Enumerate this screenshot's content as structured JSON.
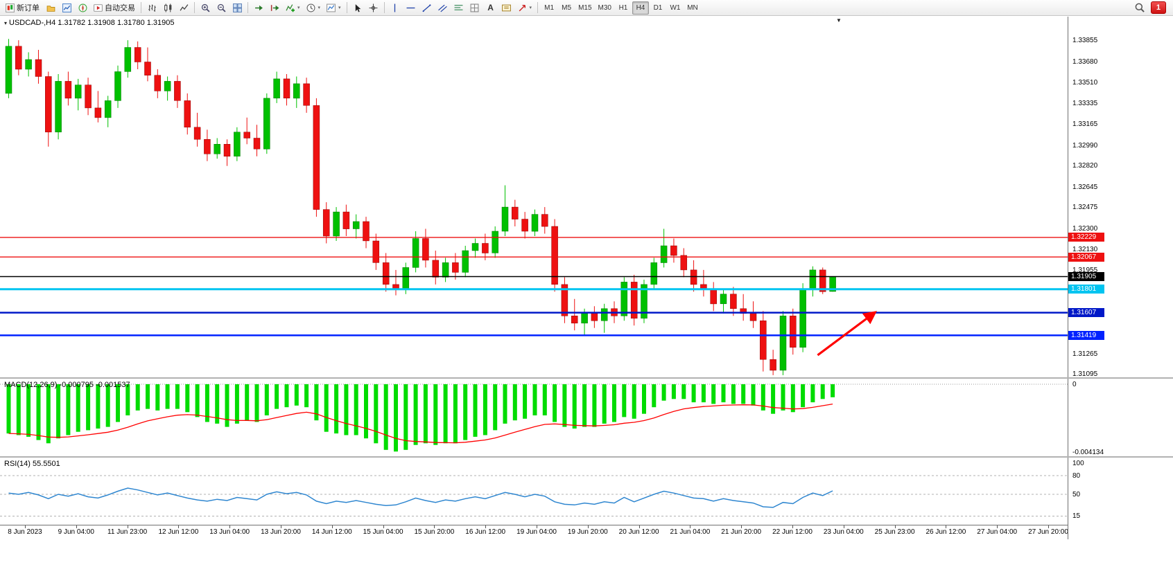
{
  "window": {
    "title": "USDCAD-,H4 1.31782 1.31908 1.31780 1.31905"
  },
  "toolbar": {
    "groups": [
      {
        "items": [
          {
            "name": "new-order-button",
            "icon": "neworder",
            "label": "新订单"
          },
          {
            "name": "profiles-button",
            "icon": "profile"
          },
          {
            "name": "market-watch-button",
            "icon": "marketwatch"
          },
          {
            "name": "navigator-button",
            "icon": "navigator"
          },
          {
            "name": "auto-trading-button",
            "icon": "autotrade",
            "label": "自动交易"
          }
        ]
      },
      {
        "items": [
          {
            "name": "bar-chart-button",
            "icon": "bars"
          },
          {
            "name": "candlestick-chart-button",
            "icon": "candles"
          },
          {
            "name": "line-chart-button",
            "icon": "linechart"
          }
        ]
      },
      {
        "items": [
          {
            "name": "zoom-in-button",
            "icon": "zoomin"
          },
          {
            "name": "zoom-out-button",
            "icon": "zoomout"
          },
          {
            "name": "tile-windows-button",
            "icon": "tile"
          }
        ]
      },
      {
        "items": [
          {
            "name": "auto-scroll-button",
            "icon": "autoscroll"
          },
          {
            "name": "chart-shift-button",
            "icon": "shift"
          },
          {
            "name": "indicators-button",
            "icon": "indicators",
            "dropdown": true
          },
          {
            "name": "periods-button",
            "icon": "clock",
            "dropdown": true
          },
          {
            "name": "templates-button",
            "icon": "template",
            "dropdown": true
          }
        ]
      },
      {
        "items": [
          {
            "name": "cursor-button",
            "icon": "cursor"
          },
          {
            "name": "crosshair-button",
            "icon": "crosshair"
          }
        ]
      },
      {
        "items": [
          {
            "name": "vertical-line-button",
            "icon": "vline"
          },
          {
            "name": "horizontal-line-button",
            "icon": "hline"
          },
          {
            "name": "trendline-button",
            "icon": "trend"
          },
          {
            "name": "equidistant-channel-button",
            "icon": "channel"
          },
          {
            "name": "fibonacci-button",
            "icon": "fibo"
          },
          {
            "name": "shapes-button",
            "icon": "grid"
          },
          {
            "name": "text-button",
            "glyph": "A"
          },
          {
            "name": "text-label-button",
            "icon": "textlabel"
          },
          {
            "name": "arrows-button",
            "icon": "arrowobj",
            "dropdown": true
          }
        ]
      }
    ],
    "timeframes": [
      "M1",
      "M5",
      "M15",
      "M30",
      "H1",
      "H4",
      "D1",
      "W1",
      "MN"
    ],
    "active_timeframe": "H4",
    "notification_badge": "1"
  },
  "time_axis": {
    "labels": [
      "8 Jun 2023",
      "9 Jun 04:00",
      "11 Jun 23:00",
      "12 Jun 12:00",
      "13 Jun 04:00",
      "13 Jun 20:00",
      "14 Jun 12:00",
      "15 Jun 04:00",
      "15 Jun 20:00",
      "16 Jun 12:00",
      "19 Jun 04:00",
      "19 Jun 20:00",
      "20 Jun 12:00",
      "21 Jun 04:00",
      "21 Jun 20:00",
      "22 Jun 12:00",
      "23 Jun 04:00",
      "25 Jun 23:00",
      "26 Jun 12:00",
      "27 Jun 04:00",
      "27 Jun 20:00"
    ]
  },
  "chart_data": [
    {
      "type": "candlestick",
      "symbol": "USDCAD-",
      "timeframe": "H4",
      "current_bar": {
        "open": 1.31782,
        "high": 1.31908,
        "low": 1.3178,
        "close": 1.31905
      },
      "ylim": [
        1.31072,
        1.34055
      ],
      "colors": {
        "up": "#00C000",
        "down": "#EE1111"
      },
      "axis_labels": [
        "1.33855",
        "1.33680",
        "1.33510",
        "1.33335",
        "1.33165",
        "1.32990",
        "1.32820",
        "1.32645",
        "1.32475",
        "1.32300",
        "1.32130",
        "1.31955",
        "1.31265",
        "1.31095"
      ],
      "hlines": [
        {
          "price": 1.32229,
          "label": "1.32229",
          "color": "#EE1111",
          "width": 1.4
        },
        {
          "price": 1.32067,
          "label": "1.32067",
          "color": "#EE1111",
          "width": 1.4
        },
        {
          "price": 1.31801,
          "label": "1.31801",
          "color": "#00C4F0",
          "width": 3
        },
        {
          "price": 1.31607,
          "label": "1.31607",
          "color": "#0018C8",
          "width": 2.5
        },
        {
          "price": 1.31419,
          "label": "1.31419",
          "color": "#0022FF",
          "width": 2.5
        }
      ],
      "current_price": {
        "price": 1.31905,
        "label": "1.31905",
        "color": "#000000"
      },
      "annotation": {
        "type": "arrow",
        "color": "#FF0000",
        "width": 3.2,
        "from": {
          "bar": 81.8,
          "price": 1.31255
        },
        "to": {
          "bar": 87.6,
          "price": 1.3161
        }
      },
      "ohlc": [
        [
          1.3342,
          1.3387,
          1.3338,
          1.3381
        ],
        [
          1.3381,
          1.3386,
          1.3357,
          1.3362
        ],
        [
          1.3362,
          1.3376,
          1.3356,
          1.337
        ],
        [
          1.337,
          1.3378,
          1.335,
          1.3356
        ],
        [
          1.3356,
          1.336,
          1.3298,
          1.331
        ],
        [
          1.331,
          1.3358,
          1.3304,
          1.3352
        ],
        [
          1.3352,
          1.336,
          1.3332,
          1.3338
        ],
        [
          1.3338,
          1.3354,
          1.3328,
          1.3349
        ],
        [
          1.3349,
          1.3355,
          1.3324,
          1.333
        ],
        [
          1.333,
          1.3344,
          1.3318,
          1.3322
        ],
        [
          1.3322,
          1.334,
          1.3314,
          1.3336
        ],
        [
          1.3336,
          1.3365,
          1.333,
          1.336
        ],
        [
          1.336,
          1.3386,
          1.3355,
          1.338
        ],
        [
          1.338,
          1.3385,
          1.3362,
          1.3368
        ],
        [
          1.3368,
          1.338,
          1.3352,
          1.3357
        ],
        [
          1.3357,
          1.3362,
          1.3338,
          1.3344
        ],
        [
          1.3344,
          1.3356,
          1.3336,
          1.3352
        ],
        [
          1.3352,
          1.3357,
          1.333,
          1.3336
        ],
        [
          1.3336,
          1.3342,
          1.3308,
          1.3314
        ],
        [
          1.3314,
          1.3326,
          1.3298,
          1.3304
        ],
        [
          1.3304,
          1.3312,
          1.3286,
          1.3292
        ],
        [
          1.3292,
          1.3305,
          1.3288,
          1.33
        ],
        [
          1.33,
          1.3304,
          1.3282,
          1.329
        ],
        [
          1.329,
          1.3314,
          1.3286,
          1.331
        ],
        [
          1.331,
          1.3322,
          1.33,
          1.3305
        ],
        [
          1.3305,
          1.3316,
          1.329,
          1.3296
        ],
        [
          1.3296,
          1.3342,
          1.3292,
          1.3338
        ],
        [
          1.3338,
          1.336,
          1.3334,
          1.3354
        ],
        [
          1.3354,
          1.3358,
          1.3332,
          1.3338
        ],
        [
          1.3338,
          1.3356,
          1.333,
          1.335
        ],
        [
          1.335,
          1.3355,
          1.3326,
          1.3332
        ],
        [
          1.3332,
          1.3338,
          1.324,
          1.3246
        ],
        [
          1.3246,
          1.3252,
          1.3218,
          1.3224
        ],
        [
          1.3224,
          1.3248,
          1.322,
          1.3244
        ],
        [
          1.3244,
          1.325,
          1.3224,
          1.323
        ],
        [
          1.323,
          1.3242,
          1.3222,
          1.3236
        ],
        [
          1.3236,
          1.324,
          1.3214,
          1.322
        ],
        [
          1.322,
          1.3226,
          1.3196,
          1.3202
        ],
        [
          1.3202,
          1.321,
          1.3178,
          1.3184
        ],
        [
          1.3184,
          1.3196,
          1.3175,
          1.318
        ],
        [
          1.318,
          1.3202,
          1.3176,
          1.3198
        ],
        [
          1.3198,
          1.3228,
          1.3194,
          1.3222
        ],
        [
          1.3222,
          1.323,
          1.3198,
          1.3204
        ],
        [
          1.3204,
          1.3212,
          1.3184,
          1.319
        ],
        [
          1.319,
          1.3206,
          1.3186,
          1.3202
        ],
        [
          1.3202,
          1.321,
          1.3188,
          1.3194
        ],
        [
          1.3194,
          1.3216,
          1.319,
          1.3212
        ],
        [
          1.3212,
          1.3222,
          1.3206,
          1.3218
        ],
        [
          1.3218,
          1.3226,
          1.3204,
          1.321
        ],
        [
          1.321,
          1.3232,
          1.3206,
          1.3228
        ],
        [
          1.3228,
          1.3266,
          1.3224,
          1.3248
        ],
        [
          1.3248,
          1.3254,
          1.3232,
          1.3238
        ],
        [
          1.3238,
          1.3244,
          1.3222,
          1.3228
        ],
        [
          1.3228,
          1.3246,
          1.3224,
          1.3242
        ],
        [
          1.3242,
          1.3248,
          1.3226,
          1.3232
        ],
        [
          1.3232,
          1.3238,
          1.3178,
          1.3184
        ],
        [
          1.3184,
          1.319,
          1.3152,
          1.3158
        ],
        [
          1.3158,
          1.3172,
          1.3146,
          1.3152
        ],
        [
          1.3152,
          1.3164,
          1.3142,
          1.316
        ],
        [
          1.316,
          1.3166,
          1.3148,
          1.3154
        ],
        [
          1.3154,
          1.3168,
          1.3144,
          1.3164
        ],
        [
          1.3164,
          1.317,
          1.3152,
          1.3158
        ],
        [
          1.3158,
          1.319,
          1.3154,
          1.3186
        ],
        [
          1.3186,
          1.3192,
          1.315,
          1.3156
        ],
        [
          1.3156,
          1.3188,
          1.3152,
          1.3184
        ],
        [
          1.3184,
          1.3206,
          1.318,
          1.3202
        ],
        [
          1.3202,
          1.323,
          1.3198,
          1.3216
        ],
        [
          1.3216,
          1.3222,
          1.3202,
          1.3208
        ],
        [
          1.3208,
          1.3214,
          1.319,
          1.3196
        ],
        [
          1.3196,
          1.3204,
          1.3178,
          1.3184
        ],
        [
          1.3184,
          1.3196,
          1.3174,
          1.318
        ],
        [
          1.318,
          1.3186,
          1.3162,
          1.3168
        ],
        [
          1.3168,
          1.318,
          1.316,
          1.3176
        ],
        [
          1.3176,
          1.3182,
          1.3158,
          1.3164
        ],
        [
          1.3164,
          1.3176,
          1.3154,
          1.316
        ],
        [
          1.316,
          1.317,
          1.3148,
          1.3154
        ],
        [
          1.3154,
          1.3162,
          1.3112,
          1.3122
        ],
        [
          1.3122,
          1.313,
          1.3109,
          1.3113
        ],
        [
          1.3113,
          1.3162,
          1.3109,
          1.3158
        ],
        [
          1.3158,
          1.3164,
          1.3126,
          1.3132
        ],
        [
          1.3132,
          1.3185,
          1.3128,
          1.318
        ],
        [
          1.318,
          1.3199,
          1.3174,
          1.3196
        ],
        [
          1.3196,
          1.3198,
          1.3176,
          1.3178
        ],
        [
          1.31782,
          1.31908,
          1.3178,
          1.31905
        ]
      ]
    },
    {
      "type": "bar",
      "name": "MACD(12,26,9)",
      "label": "MACD(12,26,9) -0.000795 -0.001537",
      "value_main": -0.000795,
      "value_signal": -0.001537,
      "ylim": [
        -0.004134,
        0
      ],
      "axis_labels": [
        "0",
        "-0.004134"
      ],
      "colors": {
        "bar": "#00DC00",
        "signal": "#FF0000"
      },
      "values": [
        -0.003,
        -0.0031,
        -0.0032,
        -0.0034,
        -0.0036,
        -0.0033,
        -0.0031,
        -0.0029,
        -0.0028,
        -0.0027,
        -0.0026,
        -0.0023,
        -0.0019,
        -0.0016,
        -0.0015,
        -0.0016,
        -0.0015,
        -0.0015,
        -0.0017,
        -0.002,
        -0.0023,
        -0.0024,
        -0.0026,
        -0.0024,
        -0.0022,
        -0.0023,
        -0.0019,
        -0.0015,
        -0.0014,
        -0.0013,
        -0.0014,
        -0.0022,
        -0.0029,
        -0.003,
        -0.0031,
        -0.0031,
        -0.0033,
        -0.0036,
        -0.004,
        -0.0041,
        -0.004,
        -0.0037,
        -0.0036,
        -0.0037,
        -0.0036,
        -0.0036,
        -0.0034,
        -0.0032,
        -0.0031,
        -0.0028,
        -0.0024,
        -0.0022,
        -0.0021,
        -0.0019,
        -0.0019,
        -0.0023,
        -0.0026,
        -0.0027,
        -0.0026,
        -0.0026,
        -0.0024,
        -0.0023,
        -0.002,
        -0.0021,
        -0.0018,
        -0.0014,
        -0.001,
        -0.0009,
        -0.0009,
        -0.0011,
        -0.0011,
        -0.0012,
        -0.0011,
        -0.0012,
        -0.0012,
        -0.0013,
        -0.0016,
        -0.0018,
        -0.0016,
        -0.0017,
        -0.0014,
        -0.0011,
        -0.0009,
        -0.000795
      ]
    },
    {
      "type": "line",
      "name": "RSI(14)",
      "label": "RSI(14) 55.5501",
      "value": 55.5501,
      "ylim": [
        0,
        100
      ],
      "levels": [
        80,
        50,
        15
      ],
      "axis_labels": [
        "100",
        "80",
        "50",
        "15"
      ],
      "color": "#2E86D0",
      "values": [
        52,
        50,
        53,
        49,
        43,
        50,
        47,
        51,
        46,
        44,
        49,
        55,
        60,
        57,
        53,
        49,
        52,
        48,
        44,
        41,
        39,
        42,
        40,
        45,
        43,
        41,
        50,
        54,
        51,
        53,
        49,
        39,
        35,
        39,
        37,
        40,
        37,
        34,
        32,
        33,
        38,
        44,
        40,
        37,
        41,
        39,
        43,
        46,
        43,
        48,
        53,
        50,
        46,
        50,
        47,
        38,
        34,
        33,
        36,
        34,
        38,
        36,
        45,
        38,
        44,
        50,
        55,
        52,
        48,
        44,
        43,
        39,
        43,
        40,
        38,
        36,
        30,
        29,
        37,
        35,
        45,
        52,
        48,
        55.55
      ]
    }
  ]
}
